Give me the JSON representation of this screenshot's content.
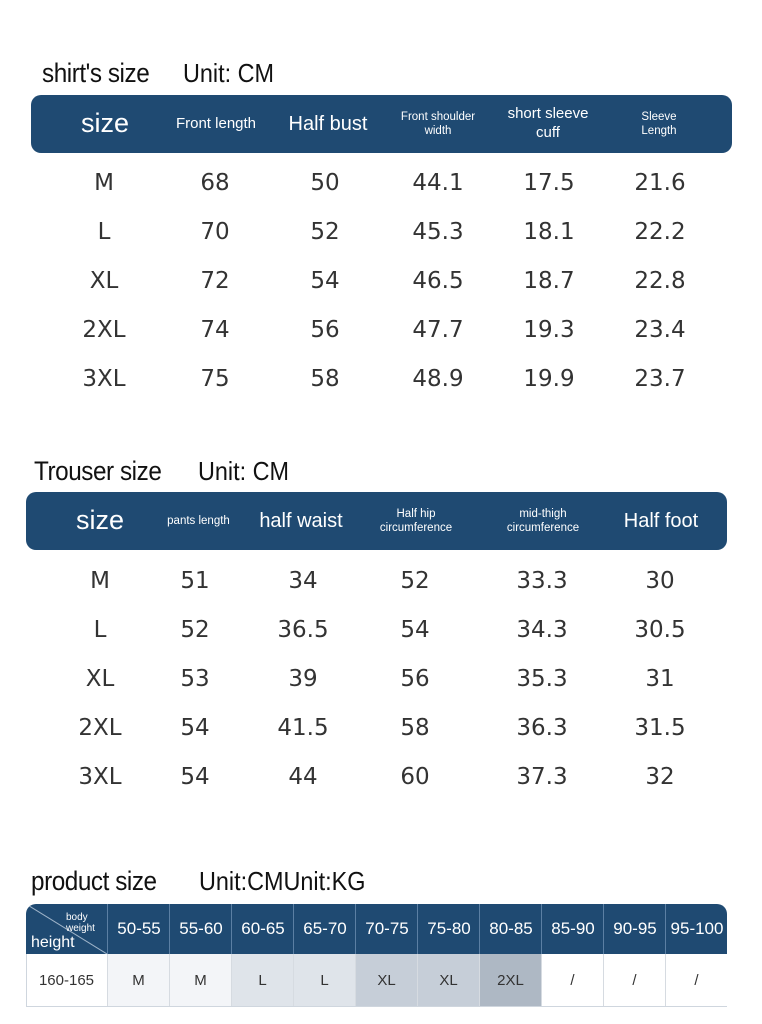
{
  "shirt": {
    "title": "shirt's size",
    "unit": "Unit: CM",
    "headers": [
      "size",
      "Front length",
      "Half bust",
      "Front shoulder\nwidth",
      "short sleeve\ncuff",
      "Sleeve\nLength"
    ],
    "rows": [
      [
        "M",
        "68",
        "50",
        "44.1",
        "17.5",
        "21.6"
      ],
      [
        "L",
        "70",
        "52",
        "45.3",
        "18.1",
        "22.2"
      ],
      [
        "XL",
        "72",
        "54",
        "46.5",
        "18.7",
        "22.8"
      ],
      [
        "2XL",
        "74",
        "56",
        "47.7",
        "19.3",
        "23.4"
      ],
      [
        "3XL",
        "75",
        "58",
        "48.9",
        "19.9",
        "23.7"
      ]
    ]
  },
  "trouser": {
    "title": "Trouser size",
    "unit": "Unit: CM",
    "headers": [
      "size",
      "pants length",
      "half waist",
      "Half hip\ncircumference",
      "mid-thigh\ncircumference",
      "Half foot"
    ],
    "rows": [
      [
        "M",
        "51",
        "34",
        "52",
        "33.3",
        "30"
      ],
      [
        "L",
        "52",
        "36.5",
        "54",
        "34.3",
        "30.5"
      ],
      [
        "XL",
        "53",
        "39",
        "56",
        "35.3",
        "31"
      ],
      [
        "2XL",
        "54",
        "41.5",
        "58",
        "36.3",
        "31.5"
      ],
      [
        "3XL",
        "54",
        "44",
        "60",
        "37.3",
        "32"
      ]
    ]
  },
  "product": {
    "title": "product size",
    "unit": "Unit:CMUnit:KG",
    "corner_top": "body weight",
    "corner_bottom": "height",
    "weight_cols": [
      "50-55",
      "55-60",
      "60-65",
      "65-70",
      "70-75",
      "75-80",
      "80-85",
      "85-90",
      "90-95",
      "95-100"
    ],
    "rows": [
      {
        "height": "160-165",
        "cells": [
          "M",
          "M",
          "L",
          "L",
          "XL",
          "XL",
          "2XL",
          "/",
          "/",
          "/"
        ]
      }
    ]
  },
  "colors": {
    "header_bg": "#1f4a72",
    "shade_m": "#f3f5f8",
    "shade_l": "#dfe4ea",
    "shade_xl": "#c6ced8",
    "shade_2xl": "#aeb8c4",
    "shade_none": "#ffffff"
  }
}
